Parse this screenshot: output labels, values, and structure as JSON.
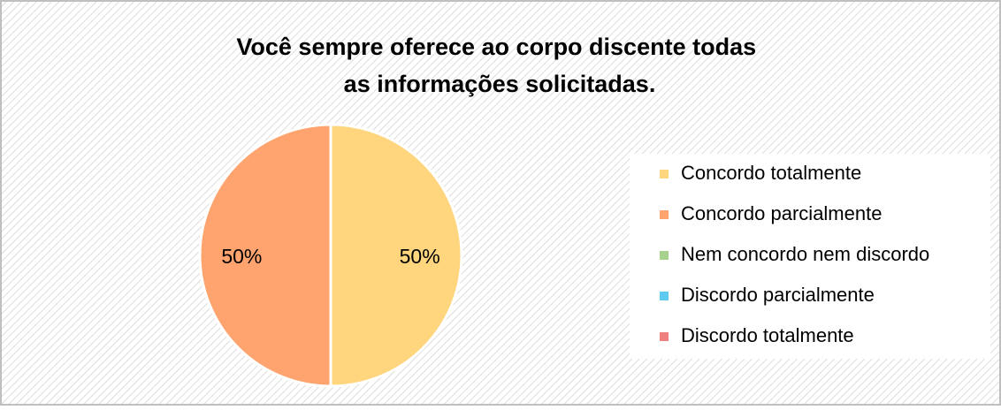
{
  "chart_data": {
    "type": "pie",
    "title": "Você sempre oferece ao corpo discente todas as informações solicitadas.",
    "categories": [
      "Concordo totalmente",
      "Concordo parcialmente",
      "Nem concordo nem discordo",
      "Discordo parcialmente",
      "Discordo totalmente"
    ],
    "values": [
      50,
      50,
      0,
      0,
      0
    ],
    "value_labels": [
      "50%",
      "50%",
      null,
      null,
      null
    ],
    "colors": [
      "#FFD57E",
      "#FFA46E",
      "#A9D18E",
      "#5FCAF0",
      "#F08080"
    ],
    "legend": "right"
  }
}
